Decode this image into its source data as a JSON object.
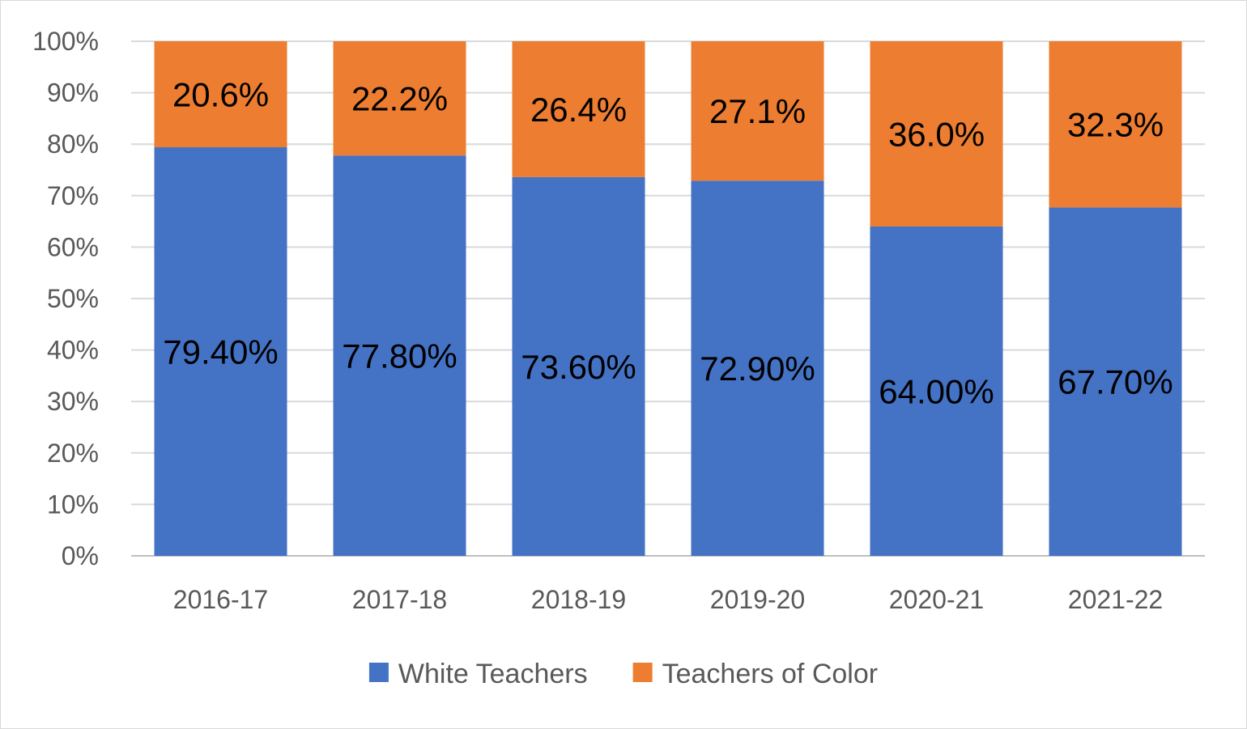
{
  "chart_data": {
    "type": "bar",
    "stacked": true,
    "categories": [
      "2016-17",
      "2017-18",
      "2018-19",
      "2019-20",
      "2020-21",
      "2021-22"
    ],
    "series": [
      {
        "name": "White Teachers",
        "color": "#4472c4",
        "values": [
          79.4,
          77.8,
          73.6,
          72.9,
          64.0,
          67.7
        ],
        "labels": [
          "79.40%",
          "77.80%",
          "73.60%",
          "72.90%",
          "64.00%",
          "67.70%"
        ]
      },
      {
        "name": "Teachers of Color",
        "color": "#ed7d31",
        "values": [
          20.6,
          22.2,
          26.4,
          27.1,
          36.0,
          32.3
        ],
        "labels": [
          "20.6%",
          "22.2%",
          "26.4%",
          "27.1%",
          "36.0%",
          "32.3%"
        ]
      }
    ],
    "title": "",
    "xlabel": "",
    "ylabel": "",
    "ylim": [
      0,
      100
    ],
    "yticks": [
      0,
      10,
      20,
      30,
      40,
      50,
      60,
      70,
      80,
      90,
      100
    ],
    "ytick_labels": [
      "0%",
      "10%",
      "20%",
      "30%",
      "40%",
      "50%",
      "60%",
      "70%",
      "80%",
      "90%",
      "100%"
    ],
    "grid": true,
    "legend_position": "bottom"
  }
}
